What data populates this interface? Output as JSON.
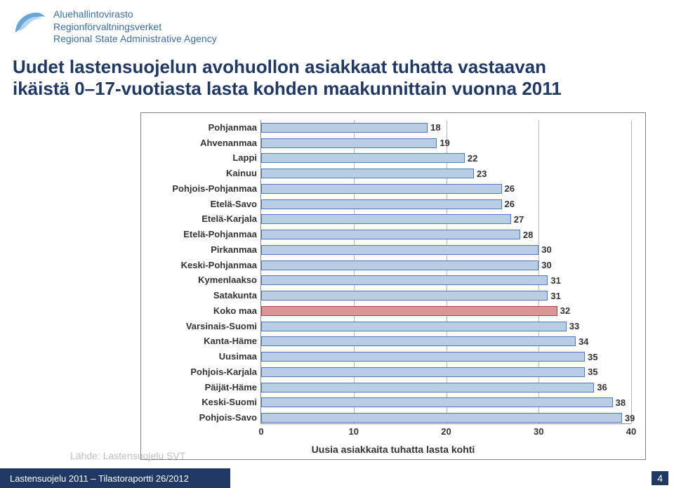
{
  "logo": {
    "line1": "Aluehallintovirasto",
    "line2": "Regionförvaltningsverket",
    "line3": "Regional State Administrative Agency",
    "text_color": "#3a6ea5",
    "swoosh_outer": "#6aa5d8",
    "swoosh_inner": "#b5d4ee"
  },
  "title": {
    "line1": "Uudet lastensuojelun avohuollon asiakkaat tuhatta vastaavan",
    "line2": "ikäistä 0–17-vuotiasta lasta kohden maakunnittain vuonna 2011",
    "color": "#203864",
    "fontsize": 26
  },
  "chart": {
    "type": "bar",
    "orientation": "horizontal",
    "x_axis_title": "Uusia asiakkaita tuhatta lasta kohti",
    "xlim": [
      0,
      40
    ],
    "xtick_step": 10,
    "xticks": [
      0,
      10,
      20,
      30,
      40
    ],
    "bar_color": "#b9cde5",
    "bar_border": "#4a7ebb",
    "highlight_color": "#d99694",
    "highlight_border": "#a94442",
    "grid_color": "#b7b7b7",
    "frame_color": "#7f7f7f",
    "label_fontsize": 13,
    "value_fontsize": 13,
    "categories": [
      {
        "label": "Pohjanmaa",
        "value": 18,
        "highlight": false
      },
      {
        "label": "Ahvenanmaa",
        "value": 19,
        "highlight": false
      },
      {
        "label": "Lappi",
        "value": 22,
        "highlight": false
      },
      {
        "label": "Kainuu",
        "value": 23,
        "highlight": false
      },
      {
        "label": "Pohjois-Pohjanmaa",
        "value": 26,
        "highlight": false
      },
      {
        "label": "Etelä-Savo",
        "value": 26,
        "highlight": false
      },
      {
        "label": "Etelä-Karjala",
        "value": 27,
        "highlight": false
      },
      {
        "label": "Etelä-Pohjanmaa",
        "value": 28,
        "highlight": false
      },
      {
        "label": "Pirkanmaa",
        "value": 30,
        "highlight": false
      },
      {
        "label": "Keski-Pohjanmaa",
        "value": 30,
        "highlight": false
      },
      {
        "label": "Kymenlaakso",
        "value": 31,
        "highlight": false
      },
      {
        "label": "Satakunta",
        "value": 31,
        "highlight": false
      },
      {
        "label": "Koko maa",
        "value": 32,
        "highlight": true
      },
      {
        "label": "Varsinais-Suomi",
        "value": 33,
        "highlight": false
      },
      {
        "label": "Kanta-Häme",
        "value": 34,
        "highlight": false
      },
      {
        "label": "Uusimaa",
        "value": 35,
        "highlight": false
      },
      {
        "label": "Pohjois-Karjala",
        "value": 35,
        "highlight": false
      },
      {
        "label": "Päijät-Häme",
        "value": 36,
        "highlight": false
      },
      {
        "label": "Keski-Suomi",
        "value": 38,
        "highlight": false
      },
      {
        "label": "Pohjois-Savo",
        "value": 39,
        "highlight": false
      }
    ]
  },
  "source": "Lähde: Lastensuojelu SVT",
  "footer": "Lastensuojelu 2011 – Tilastoraportti 26/2012",
  "page_number": "4"
}
